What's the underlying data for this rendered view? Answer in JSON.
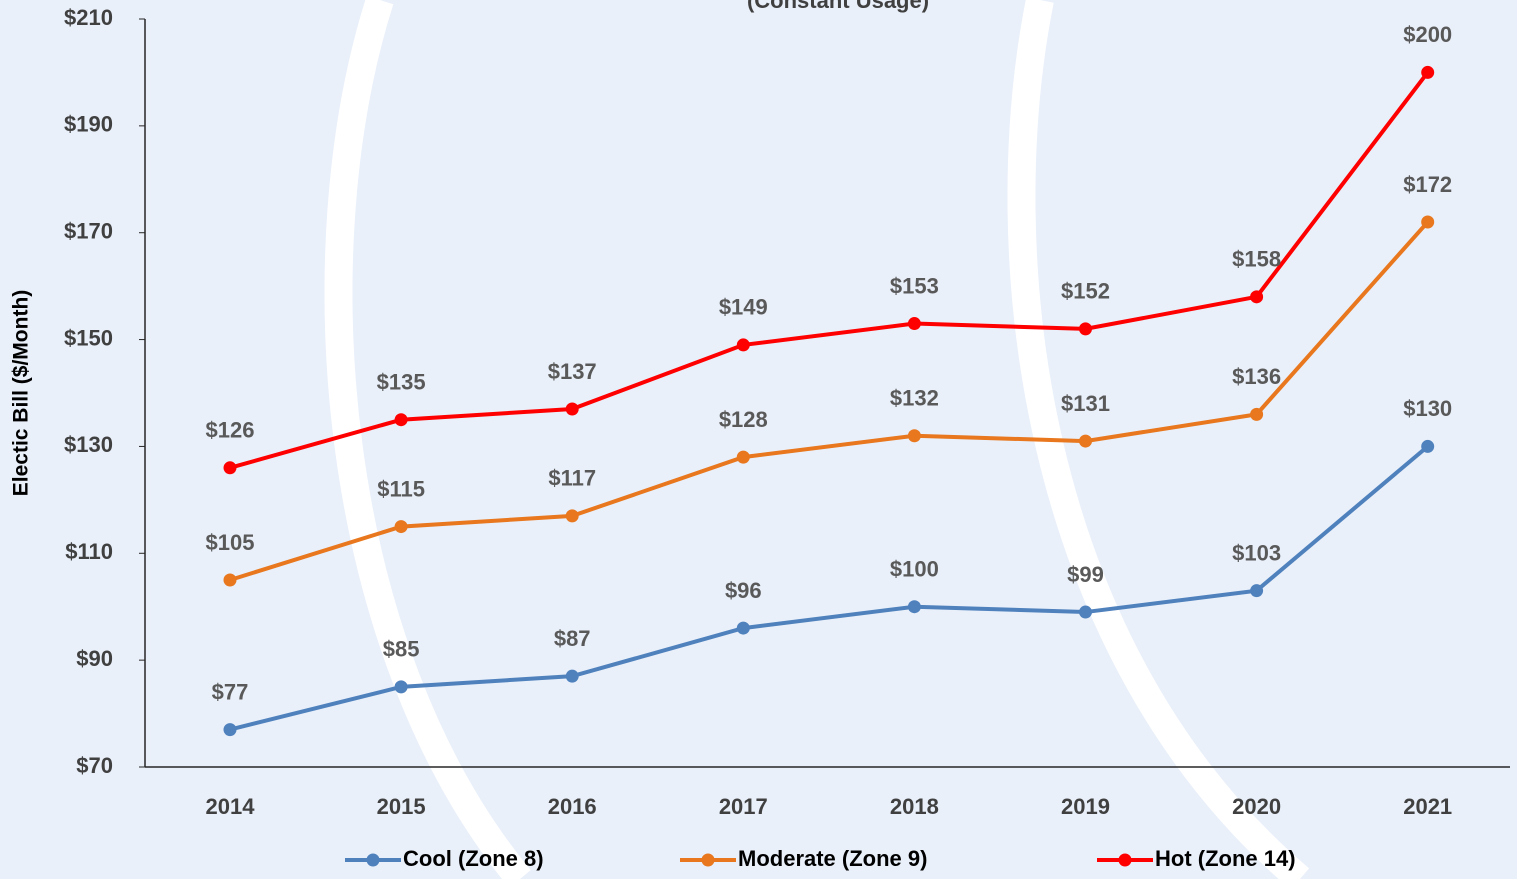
{
  "chart_data": {
    "type": "line",
    "title": "(Constant Usage)",
    "ylabel": "Electic Bill ($/Month)",
    "categories": [
      "2014",
      "2015",
      "2016",
      "2017",
      "2018",
      "2019",
      "2020",
      "2021"
    ],
    "series": [
      {
        "name": "Cool (Zone 8)",
        "color": "#4f81bd",
        "values": [
          77,
          85,
          87,
          96,
          100,
          99,
          103,
          130
        ],
        "value_labels": [
          "$77",
          "$85",
          "$87",
          "$96",
          "$100",
          "$99",
          "$103",
          "$130"
        ]
      },
      {
        "name": "Moderate (Zone 9)",
        "color": "#e8771e",
        "values": [
          105,
          115,
          117,
          128,
          132,
          131,
          136,
          172
        ],
        "value_labels": [
          "$105",
          "$115",
          "$117",
          "$128",
          "$132",
          "$131",
          "$136",
          "$172"
        ]
      },
      {
        "name": "Hot (Zone 14)",
        "color": "#ff0000",
        "values": [
          126,
          135,
          137,
          149,
          153,
          152,
          158,
          200
        ],
        "value_labels": [
          "$126",
          "$135",
          "$137",
          "$149",
          "$153",
          "$152",
          "$158",
          "$200"
        ]
      }
    ],
    "ylim": [
      70,
      210
    ],
    "yticks": [
      {
        "value": 70,
        "label": "$70"
      },
      {
        "value": 90,
        "label": "$90"
      },
      {
        "value": 110,
        "label": "$110"
      },
      {
        "value": 130,
        "label": "$130"
      },
      {
        "value": 150,
        "label": "$150"
      },
      {
        "value": 170,
        "label": "$170"
      },
      {
        "value": 190,
        "label": "$190"
      },
      {
        "value": 210,
        "label": "$210"
      }
    ],
    "legend": "bottom"
  }
}
